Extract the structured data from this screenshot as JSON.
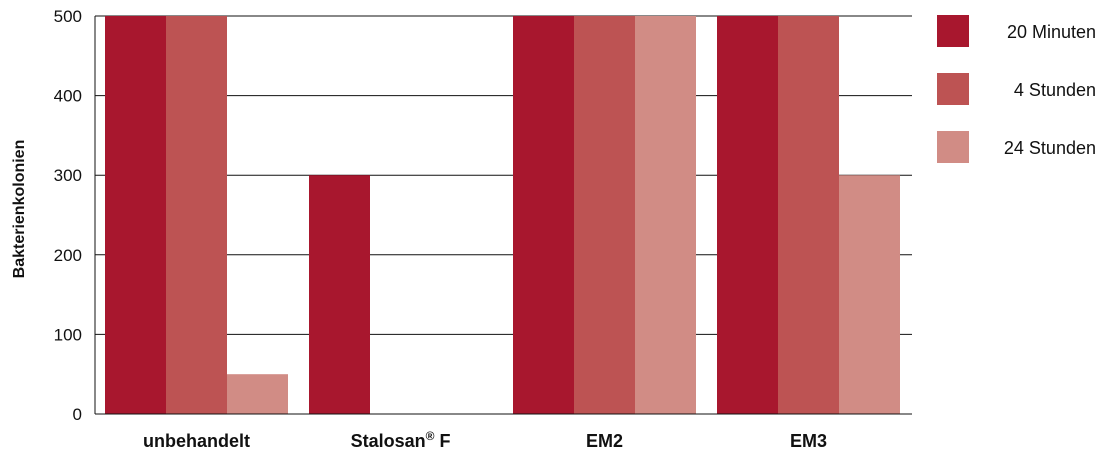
{
  "chart_data": {
    "type": "bar",
    "title": "",
    "xlabel": "",
    "ylabel": "Bakterienkolonien",
    "ylim": [
      0,
      500
    ],
    "yticks": [
      0,
      100,
      200,
      300,
      400,
      500
    ],
    "grid": true,
    "legend_position": "right",
    "categories": [
      "unbehandelt",
      "Stalosan® F",
      "EM2",
      "EM3"
    ],
    "category_labels": [
      {
        "main": "unbehandelt",
        "sup": "",
        "tail": ""
      },
      {
        "main": "Stalosan",
        "sup": "®",
        "tail": " F"
      },
      {
        "main": "EM2",
        "sup": "",
        "tail": ""
      },
      {
        "main": "EM3",
        "sup": "",
        "tail": ""
      }
    ],
    "series": [
      {
        "name": "20 Minuten",
        "color": "#a8172e",
        "values": [
          500,
          300,
          500,
          500
        ]
      },
      {
        "name": "4 Stunden",
        "color": "#bd5353",
        "values": [
          500,
          0,
          500,
          500
        ]
      },
      {
        "name": "24 Stunden",
        "color": "#d18c85",
        "values": [
          50,
          0,
          500,
          300
        ]
      }
    ]
  }
}
